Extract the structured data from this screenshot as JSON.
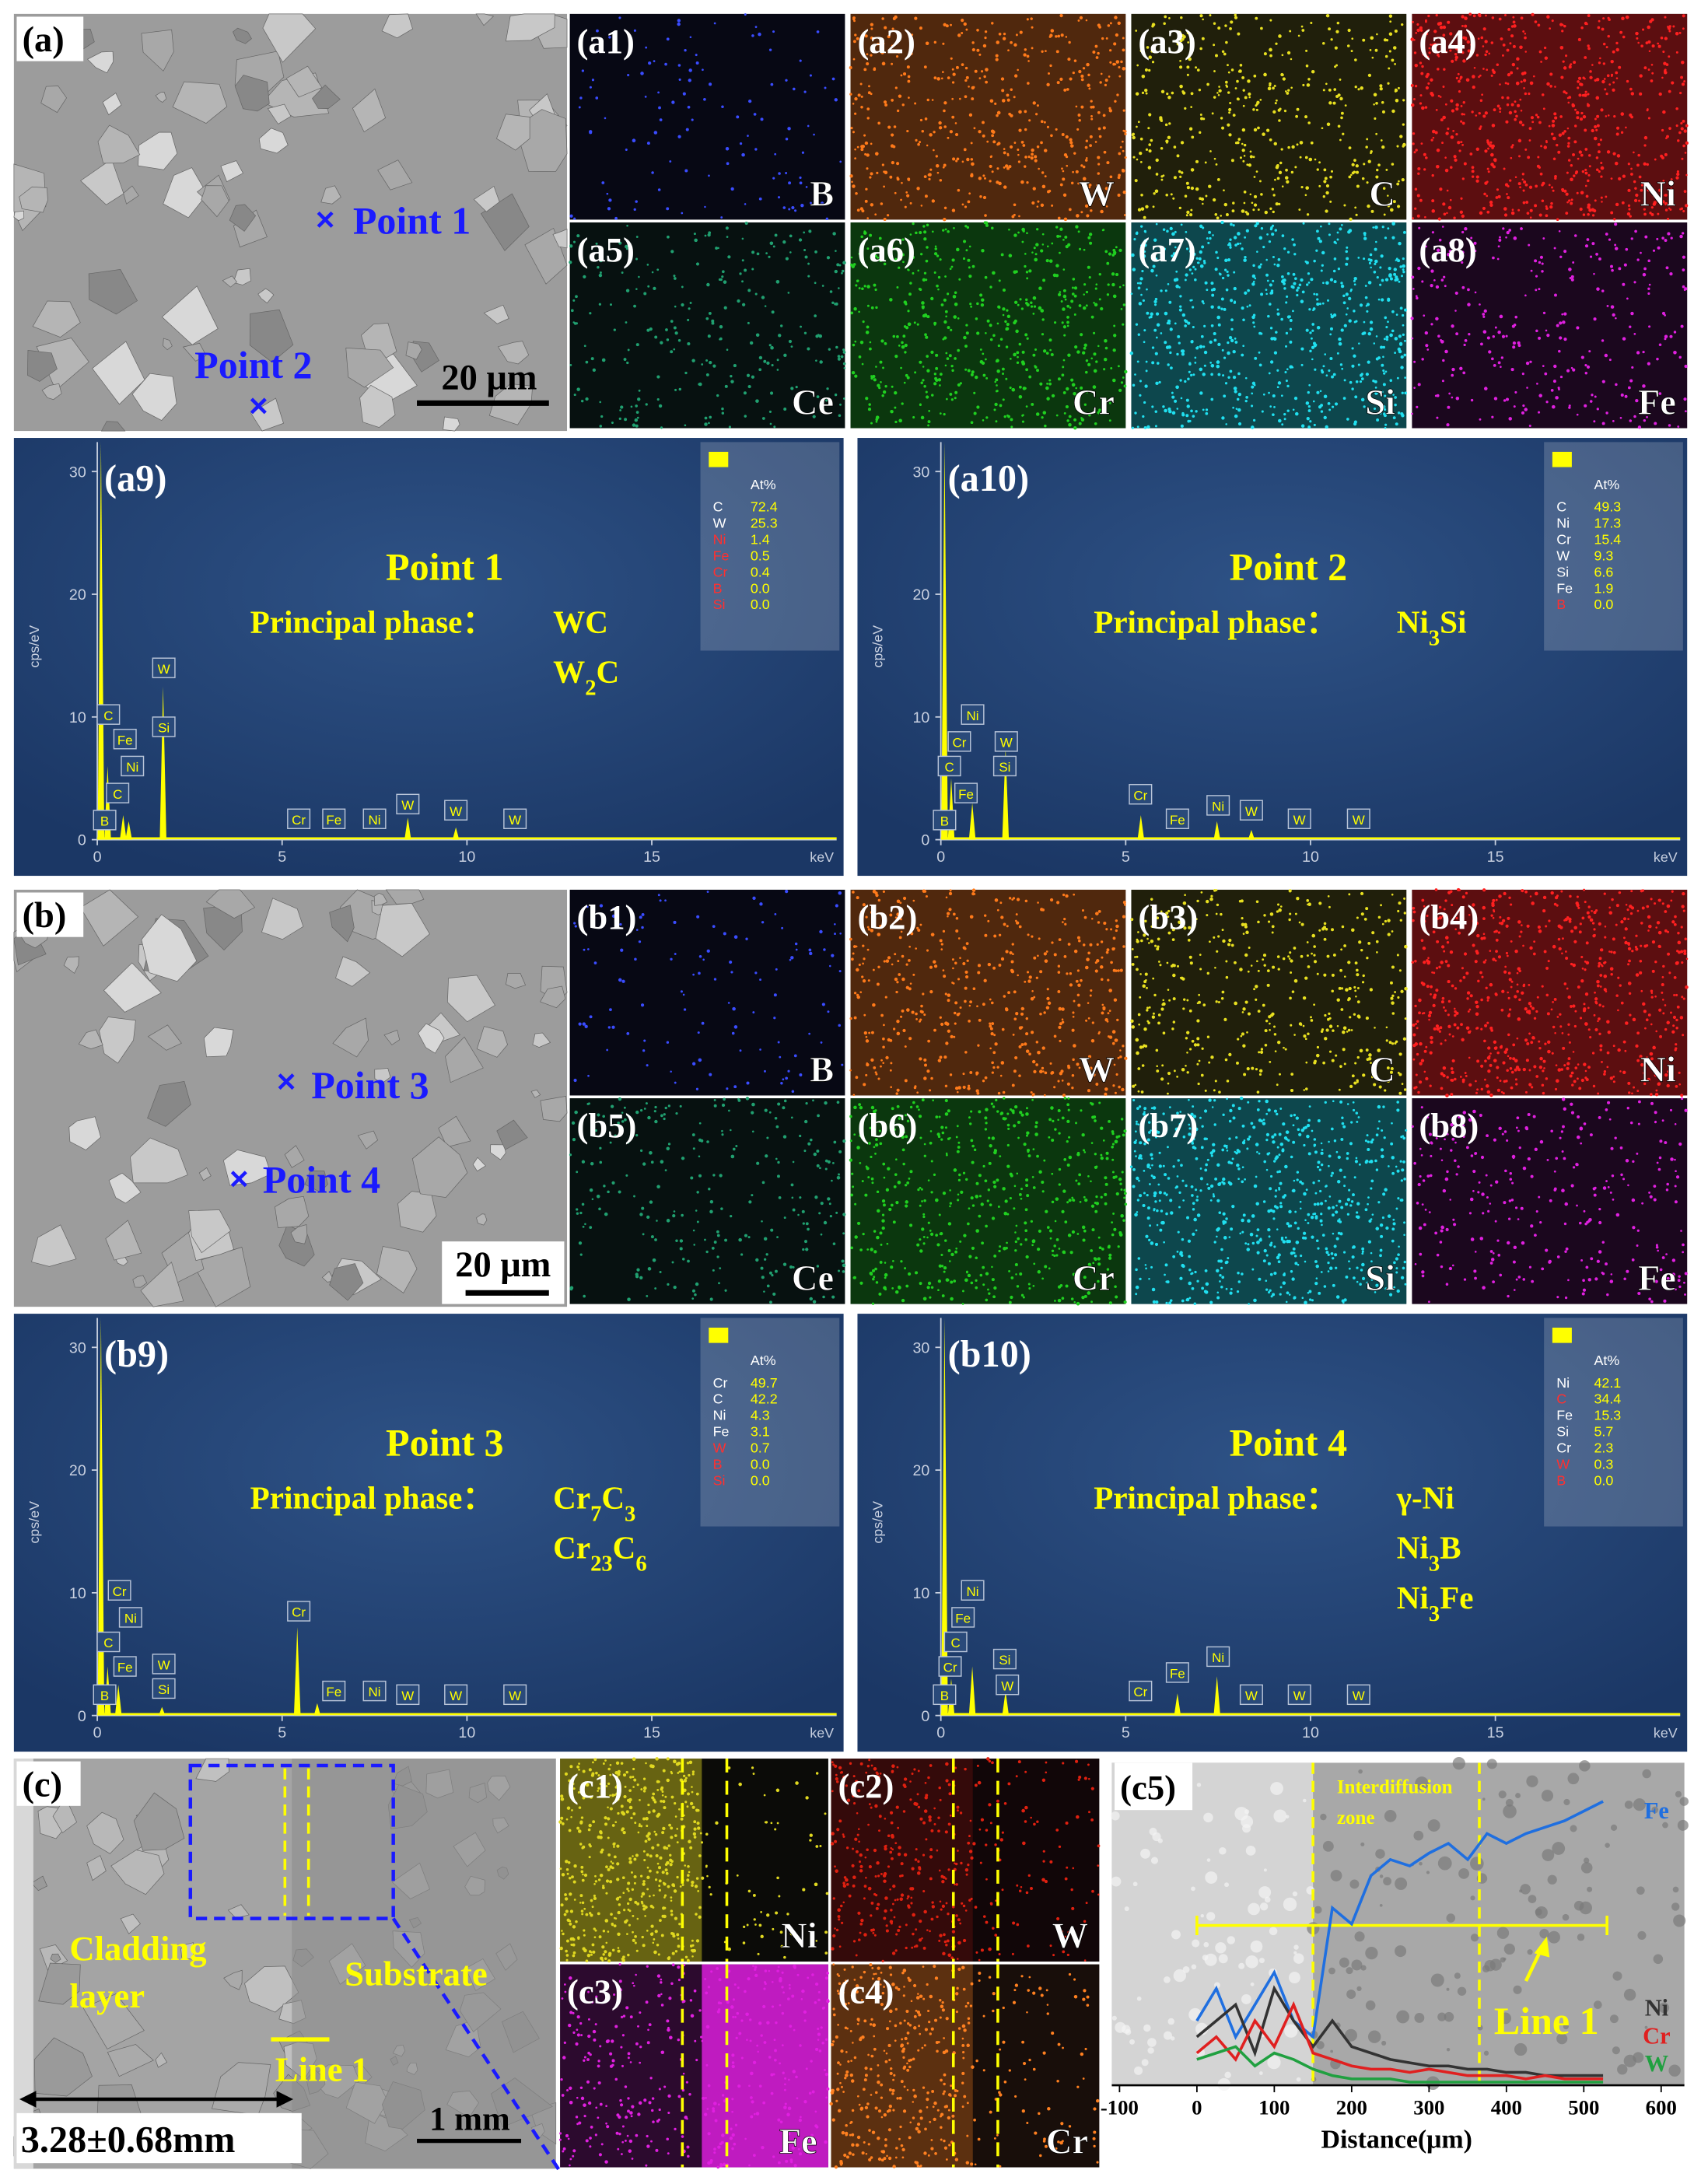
{
  "figure": {
    "a": {
      "label": "(a)",
      "points": [
        "Point 1",
        "Point 2"
      ],
      "scale_bar": "20 μm"
    },
    "a_maps": [
      {
        "label": "(a1)",
        "element": "B",
        "color": "#3a4cff"
      },
      {
        "label": "(a2)",
        "element": "W",
        "color": "#ff7a1a"
      },
      {
        "label": "(a3)",
        "element": "C",
        "color": "#e8e020"
      },
      {
        "label": "(a4)",
        "element": "Ni",
        "color": "#ff2020"
      },
      {
        "label": "(a5)",
        "element": "Ce",
        "color": "#20a070"
      },
      {
        "label": "(a6)",
        "element": "Cr",
        "color": "#20d020"
      },
      {
        "label": "(a7)",
        "element": "Si",
        "color": "#20e0f0"
      },
      {
        "label": "(a8)",
        "element": "Fe",
        "color": "#e020e0"
      }
    ],
    "b": {
      "label": "(b)",
      "points": [
        "Point 3",
        "Point 4"
      ],
      "scale_bar": "20 μm"
    },
    "b_maps": [
      {
        "label": "(b1)",
        "element": "B",
        "color": "#3a4cff"
      },
      {
        "label": "(b2)",
        "element": "W",
        "color": "#ff7a1a"
      },
      {
        "label": "(b3)",
        "element": "C",
        "color": "#e8e020"
      },
      {
        "label": "(b4)",
        "element": "Ni",
        "color": "#ff2020"
      },
      {
        "label": "(b5)",
        "element": "Ce",
        "color": "#20a070"
      },
      {
        "label": "(b6)",
        "element": "Cr",
        "color": "#20d020"
      },
      {
        "label": "(b7)",
        "element": "Si",
        "color": "#20e0f0"
      },
      {
        "label": "(b8)",
        "element": "Fe",
        "color": "#e020e0"
      }
    ],
    "spectra": [
      {
        "label": "(a9)",
        "title": "Point 1",
        "phase_label": "Principal phase：",
        "phases": [
          [
            "WC"
          ],
          [
            "W",
            "2",
            "C"
          ]
        ],
        "table_header": "At%",
        "table": [
          {
            "element": "C",
            "at": "72.4",
            "color": "#ffffff"
          },
          {
            "element": "W",
            "at": "25.3",
            "color": "#ffffff"
          },
          {
            "element": "Ni",
            "at": "1.4",
            "color": "#ff3030"
          },
          {
            "element": "Fe",
            "at": "0.5",
            "color": "#ff3030"
          },
          {
            "element": "Cr",
            "at": "0.4",
            "color": "#ff3030"
          },
          {
            "element": "B",
            "at": "0.0",
            "color": "#ff3030"
          },
          {
            "element": "Si",
            "at": "0.0",
            "color": "#ff3030"
          }
        ],
        "y_label": "cps/eV",
        "x_unit": "keV",
        "xlim": [
          0,
          20
        ],
        "ylim": [
          0,
          32.4
        ],
        "xticks": [
          0,
          5,
          10,
          15
        ],
        "yticks": [
          0,
          10,
          20,
          30
        ],
        "peaks": [
          {
            "x": 0.1,
            "h": 32.4
          },
          {
            "x": 0.28,
            "h": 6
          },
          {
            "x": 0.7,
            "h": 2
          },
          {
            "x": 0.85,
            "h": 1.5
          },
          {
            "x": 1.78,
            "h": 12.5
          },
          {
            "x": 8.4,
            "h": 1.8
          },
          {
            "x": 9.7,
            "h": 1
          }
        ],
        "tags": [
          {
            "text": "C",
            "x": 0.3,
            "y": 10.2
          },
          {
            "text": "Fe",
            "x": 0.75,
            "y": 8.2
          },
          {
            "text": "Ni",
            "x": 0.95,
            "y": 6
          },
          {
            "text": "C",
            "x": 0.55,
            "y": 3.8
          },
          {
            "text": "B",
            "x": 0.2,
            "y": 1.6
          },
          {
            "text": "W",
            "x": 1.8,
            "y": 14
          },
          {
            "text": "Si",
            "x": 1.8,
            "y": 9.2
          },
          {
            "text": "Cr",
            "x": 5.45,
            "y": 1.7
          },
          {
            "text": "Fe",
            "x": 6.4,
            "y": 1.7
          },
          {
            "text": "Ni",
            "x": 7.5,
            "y": 1.7
          },
          {
            "text": "W",
            "x": 8.4,
            "y": 2.9
          },
          {
            "text": "W",
            "x": 9.7,
            "y": 2.4
          },
          {
            "text": "W",
            "x": 11.3,
            "y": 1.7
          }
        ]
      },
      {
        "label": "(a10)",
        "title": "Point 2",
        "phase_label": "Principal phase：",
        "phases": [
          [
            "Ni",
            "3",
            "Si"
          ]
        ],
        "table_header": "At%",
        "table": [
          {
            "element": "C",
            "at": "49.3",
            "color": "#ffffff"
          },
          {
            "element": "Ni",
            "at": "17.3",
            "color": "#ffffff"
          },
          {
            "element": "Cr",
            "at": "15.4",
            "color": "#ffffff"
          },
          {
            "element": "W",
            "at": "9.3",
            "color": "#ffffff"
          },
          {
            "element": "Si",
            "at": "6.6",
            "color": "#ffffff"
          },
          {
            "element": "Fe",
            "at": "1.9",
            "color": "#ffffff"
          },
          {
            "element": "B",
            "at": "0.0",
            "color": "#ff3030"
          }
        ],
        "y_label": "cps/eV",
        "x_unit": "keV",
        "xlim": [
          0,
          20
        ],
        "ylim": [
          0,
          32.4
        ],
        "xticks": [
          0,
          5,
          10,
          15
        ],
        "yticks": [
          0,
          10,
          20,
          30
        ],
        "peaks": [
          {
            "x": 0.1,
            "h": 32.4
          },
          {
            "x": 0.28,
            "h": 5
          },
          {
            "x": 0.85,
            "h": 3
          },
          {
            "x": 1.75,
            "h": 7.5
          },
          {
            "x": 5.41,
            "h": 2
          },
          {
            "x": 7.47,
            "h": 1.5
          },
          {
            "x": 8.4,
            "h": 0.8
          }
        ],
        "tags": [
          {
            "text": "Ni",
            "x": 0.86,
            "y": 10.2
          },
          {
            "text": "Cr",
            "x": 0.5,
            "y": 8
          },
          {
            "text": "W",
            "x": 1.77,
            "y": 8
          },
          {
            "text": "C",
            "x": 0.23,
            "y": 6
          },
          {
            "text": "Si",
            "x": 1.73,
            "y": 6
          },
          {
            "text": "Fe",
            "x": 0.68,
            "y": 3.8
          },
          {
            "text": "B",
            "x": 0.1,
            "y": 1.6
          },
          {
            "text": "Cr",
            "x": 5.4,
            "y": 3.7
          },
          {
            "text": "Fe",
            "x": 6.4,
            "y": 1.7
          },
          {
            "text": "Ni",
            "x": 7.5,
            "y": 2.8
          },
          {
            "text": "W",
            "x": 8.4,
            "y": 2.4
          },
          {
            "text": "W",
            "x": 9.7,
            "y": 1.7
          },
          {
            "text": "W",
            "x": 11.3,
            "y": 1.7
          }
        ]
      },
      {
        "label": "(b9)",
        "title": "Point 3",
        "phase_label": "Principal phase：",
        "phases": [
          [
            "Cr",
            "7",
            "C",
            "3"
          ],
          [
            "Cr",
            "23",
            "C",
            "6"
          ]
        ],
        "table_header": "At%",
        "table": [
          {
            "element": "Cr",
            "at": "49.7",
            "color": "#ffffff"
          },
          {
            "element": "C",
            "at": "42.2",
            "color": "#ffffff"
          },
          {
            "element": "Ni",
            "at": "4.3",
            "color": "#ffffff"
          },
          {
            "element": "Fe",
            "at": "3.1",
            "color": "#ffffff"
          },
          {
            "element": "W",
            "at": "0.7",
            "color": "#ff3030"
          },
          {
            "element": "B",
            "at": "0.0",
            "color": "#ff3030"
          },
          {
            "element": "Si",
            "at": "0.0",
            "color": "#ff3030"
          }
        ],
        "y_label": "cps/eV",
        "x_unit": "keV",
        "xlim": [
          0,
          20
        ],
        "ylim": [
          0,
          32.4
        ],
        "xticks": [
          0,
          5,
          10,
          15
        ],
        "yticks": [
          0,
          10,
          20,
          30
        ],
        "peaks": [
          {
            "x": 0.1,
            "h": 32.4
          },
          {
            "x": 0.28,
            "h": 4
          },
          {
            "x": 0.57,
            "h": 2.5
          },
          {
            "x": 1.75,
            "h": 0.7
          },
          {
            "x": 5.41,
            "h": 7.2
          },
          {
            "x": 5.95,
            "h": 1
          }
        ],
        "tags": [
          {
            "text": "Cr",
            "x": 0.6,
            "y": 10.2
          },
          {
            "text": "Ni",
            "x": 0.9,
            "y": 8
          },
          {
            "text": "C",
            "x": 0.3,
            "y": 6
          },
          {
            "text": "Fe",
            "x": 0.75,
            "y": 4
          },
          {
            "text": "B",
            "x": 0.2,
            "y": 1.7
          },
          {
            "text": "W",
            "x": 1.8,
            "y": 4.2
          },
          {
            "text": "Si",
            "x": 1.8,
            "y": 2.2
          },
          {
            "text": "Cr",
            "x": 5.45,
            "y": 8.5
          },
          {
            "text": "Fe",
            "x": 6.4,
            "y": 2
          },
          {
            "text": "Ni",
            "x": 7.5,
            "y": 2
          },
          {
            "text": "W",
            "x": 8.4,
            "y": 1.7
          },
          {
            "text": "W",
            "x": 9.7,
            "y": 1.7
          },
          {
            "text": "W",
            "x": 11.3,
            "y": 1.7
          }
        ]
      },
      {
        "label": "(b10)",
        "title": "Point 4",
        "phase_label": "Principal phase：",
        "phases": [
          [
            "γ-Ni"
          ],
          [
            "Ni",
            "3",
            "B"
          ],
          [
            "Ni",
            "3",
            "Fe"
          ]
        ],
        "table_header": "At%",
        "table": [
          {
            "element": "Ni",
            "at": "42.1",
            "color": "#ffffff"
          },
          {
            "element": "C",
            "at": "34.4",
            "color": "#ff3030"
          },
          {
            "element": "Fe",
            "at": "15.3",
            "color": "#ffffff"
          },
          {
            "element": "Si",
            "at": "5.7",
            "color": "#ffffff"
          },
          {
            "element": "Cr",
            "at": "2.3",
            "color": "#ffffff"
          },
          {
            "element": "W",
            "at": "0.3",
            "color": "#ff3030"
          },
          {
            "element": "B",
            "at": "0.0",
            "color": "#ff3030"
          }
        ],
        "y_label": "cps/eV",
        "x_unit": "keV",
        "xlim": [
          0,
          20
        ],
        "ylim": [
          0,
          32.4
        ],
        "xticks": [
          0,
          5,
          10,
          15
        ],
        "yticks": [
          0,
          10,
          20,
          30
        ],
        "peaks": [
          {
            "x": 0.1,
            "h": 32.4
          },
          {
            "x": 0.28,
            "h": 3
          },
          {
            "x": 0.85,
            "h": 4
          },
          {
            "x": 1.75,
            "h": 2
          },
          {
            "x": 6.4,
            "h": 1.8
          },
          {
            "x": 7.47,
            "h": 3.2
          }
        ],
        "tags": [
          {
            "text": "Ni",
            "x": 0.86,
            "y": 10.2
          },
          {
            "text": "Fe",
            "x": 0.6,
            "y": 8
          },
          {
            "text": "C",
            "x": 0.4,
            "y": 6
          },
          {
            "text": "Cr",
            "x": 0.25,
            "y": 4
          },
          {
            "text": "B",
            "x": 0.1,
            "y": 1.7
          },
          {
            "text": "Si",
            "x": 1.73,
            "y": 4.6
          },
          {
            "text": "W",
            "x": 1.8,
            "y": 2.5
          },
          {
            "text": "Cr",
            "x": 5.4,
            "y": 2
          },
          {
            "text": "Fe",
            "x": 6.4,
            "y": 3.5
          },
          {
            "text": "Ni",
            "x": 7.5,
            "y": 4.8
          },
          {
            "text": "W",
            "x": 8.4,
            "y": 1.7
          },
          {
            "text": "W",
            "x": 9.7,
            "y": 1.7
          },
          {
            "text": "W",
            "x": 11.3,
            "y": 1.7
          }
        ]
      }
    ],
    "c": {
      "label": "(c)",
      "region_labels": [
        "Cladding",
        "layer",
        "Substrate"
      ],
      "line_label": "Line 1",
      "thickness": "3.28±0.68mm",
      "scale_bar": "1 mm"
    },
    "c_maps": [
      {
        "label": "(c1)",
        "element": "Ni",
        "color": "#e0d820"
      },
      {
        "label": "(c2)",
        "element": "W",
        "color": "#e02010"
      },
      {
        "label": "(c3)",
        "element": "Fe",
        "color": "#e020e0"
      },
      {
        "label": "(c4)",
        "element": "Cr",
        "color": "#ff8020"
      }
    ],
    "c5": {
      "label": "(c5)",
      "zone_label": [
        "Interdiffusion",
        "zone"
      ],
      "line_label": "Line 1",
      "x_label": "Distance(μm)",
      "xlim": [
        -110,
        630
      ],
      "ylim": [
        0,
        100
      ],
      "xticks": [
        -100,
        0,
        100,
        200,
        300,
        400,
        500,
        600
      ],
      "zone": [
        150,
        365
      ],
      "line_span": [
        0,
        530
      ],
      "x": [
        0,
        25,
        50,
        75,
        100,
        125,
        150,
        175,
        200,
        225,
        250,
        275,
        300,
        325,
        350,
        375,
        400,
        425,
        450,
        475,
        500,
        525
      ],
      "series": [
        {
          "name": "Fe",
          "color": "#1f6fe0",
          "values": [
            20,
            30,
            15,
            25,
            35,
            20,
            15,
            55,
            50,
            65,
            70,
            68,
            72,
            75,
            70,
            78,
            75,
            78,
            80,
            82,
            85,
            88
          ]
        },
        {
          "name": "Ni",
          "color": "#333333",
          "values": [
            15,
            20,
            25,
            10,
            30,
            20,
            12,
            20,
            12,
            10,
            8,
            7,
            6,
            6,
            5,
            5,
            4,
            4,
            3,
            3,
            3,
            3
          ]
        },
        {
          "name": "Cr",
          "color": "#e02020",
          "values": [
            10,
            15,
            8,
            20,
            12,
            25,
            10,
            8,
            6,
            5,
            5,
            4,
            5,
            4,
            3,
            3,
            3,
            2,
            3,
            2,
            2,
            2
          ]
        },
        {
          "name": "W",
          "color": "#20a040",
          "values": [
            8,
            10,
            12,
            6,
            10,
            8,
            5,
            3,
            2,
            2,
            2,
            1,
            1,
            1,
            1,
            1,
            1,
            1,
            1,
            1,
            1,
            1
          ]
        }
      ]
    }
  }
}
